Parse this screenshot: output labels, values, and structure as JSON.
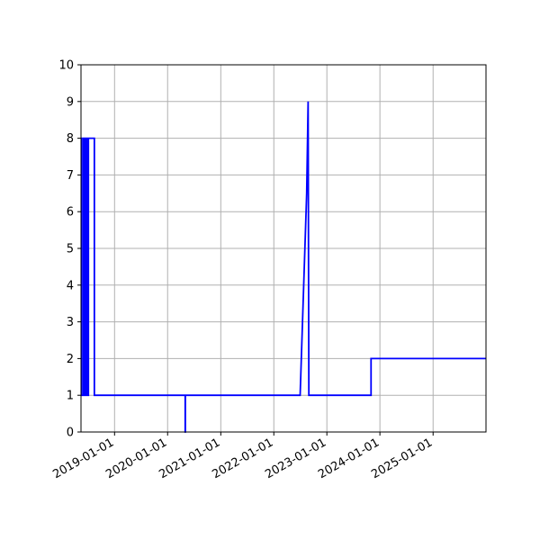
{
  "chart_data": {
    "type": "line",
    "title": "",
    "xlabel": "",
    "ylabel": "",
    "x_axis_type": "date",
    "xlim": [
      "2018-05-15",
      "2025-12-31"
    ],
    "ylim": [
      0,
      10
    ],
    "x_ticks": [
      "2019-01-01",
      "2020-01-01",
      "2021-01-01",
      "2022-01-01",
      "2023-01-01",
      "2024-01-01",
      "2025-01-01"
    ],
    "y_ticks": [
      0,
      1,
      2,
      3,
      4,
      5,
      6,
      7,
      8,
      9,
      10
    ],
    "grid": true,
    "legend": "none",
    "series": [
      {
        "color": "#0000ff",
        "points": [
          [
            "2018-05-15",
            8
          ],
          [
            "2018-05-20",
            8
          ],
          [
            "2018-05-20",
            1
          ],
          [
            "2018-06-01",
            1
          ],
          [
            "2018-06-01",
            8
          ],
          [
            "2018-06-10",
            8
          ],
          [
            "2018-06-10",
            1
          ],
          [
            "2018-06-20",
            1
          ],
          [
            "2018-06-20",
            8
          ],
          [
            "2018-07-01",
            8
          ],
          [
            "2018-07-01",
            1
          ],
          [
            "2018-07-05",
            1
          ],
          [
            "2018-07-05",
            8
          ],
          [
            "2018-08-15",
            8
          ],
          [
            "2018-08-15",
            1
          ],
          [
            "2020-05-01",
            1
          ],
          [
            "2020-05-01",
            0
          ],
          [
            "2020-05-02",
            0
          ],
          [
            "2020-05-02",
            1
          ],
          [
            "2022-07-01",
            1
          ],
          [
            "2022-08-15",
            6.5
          ],
          [
            "2022-08-25",
            9
          ],
          [
            "2022-08-30",
            1
          ],
          [
            "2023-11-01",
            1
          ],
          [
            "2023-11-01",
            2
          ],
          [
            "2025-12-31",
            2
          ]
        ]
      }
    ]
  }
}
